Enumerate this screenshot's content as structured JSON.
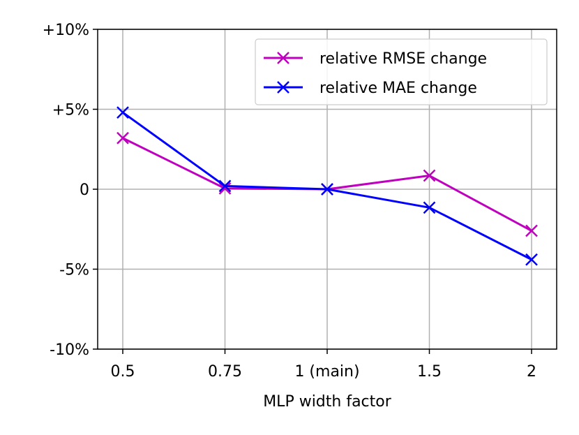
{
  "chart_data": {
    "type": "line",
    "title": "",
    "xlabel": "MLP width factor",
    "ylabel": "",
    "categories": [
      "0.5",
      "0.75",
      "1 (main)",
      "1.5",
      "2"
    ],
    "ylim": [
      -10,
      10
    ],
    "yticks": [
      -10,
      -5,
      0,
      5,
      10
    ],
    "ytick_labels": [
      "-10%",
      "-5%",
      "0",
      "+5%",
      "+10%"
    ],
    "grid": true,
    "legend_position": "top-right",
    "series": [
      {
        "name": "relative RMSE change",
        "color": "#bf00bf",
        "marker": "x",
        "values": [
          3.2,
          0.05,
          0.0,
          0.85,
          -2.6
        ]
      },
      {
        "name": "relative MAE change",
        "color": "#0000ff",
        "marker": "x",
        "values": [
          4.8,
          0.2,
          0.0,
          -1.15,
          -4.4
        ]
      }
    ]
  }
}
